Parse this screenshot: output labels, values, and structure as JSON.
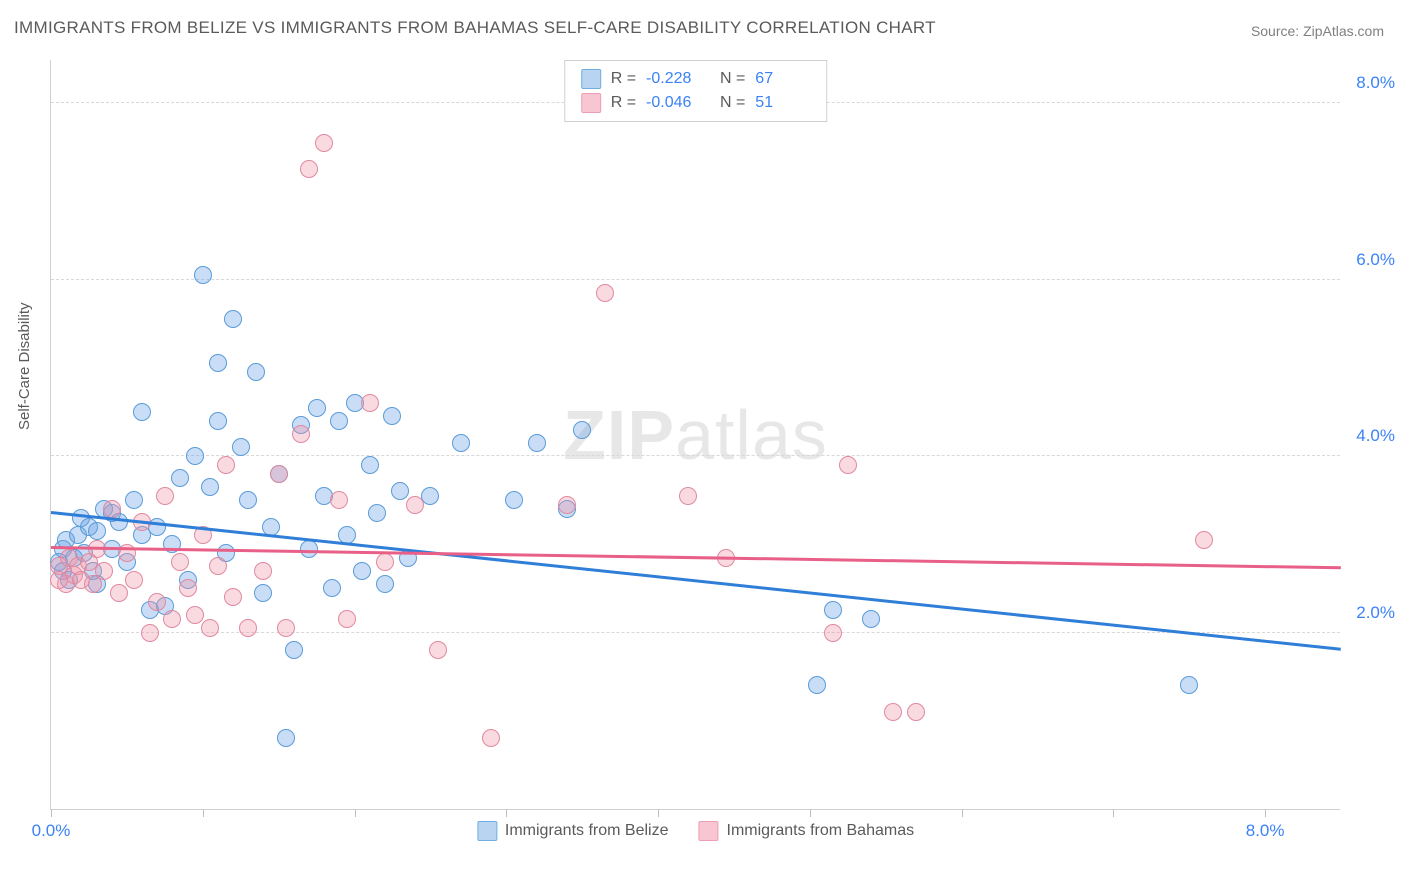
{
  "title": "IMMIGRANTS FROM BELIZE VS IMMIGRANTS FROM BAHAMAS SELF-CARE DISABILITY CORRELATION CHART",
  "source_prefix": "Source: ",
  "source_name": "ZipAtlas.com",
  "ylabel": "Self-Care Disability",
  "watermark_bold": "ZIP",
  "watermark_rest": "atlas",
  "chart": {
    "type": "scatter",
    "xlim": [
      0.0,
      8.5
    ],
    "ylim": [
      0.0,
      8.5
    ],
    "xtick_marks": [
      0.0,
      1.0,
      2.0,
      3.0,
      4.0,
      5.0,
      6.0,
      7.0,
      8.0
    ],
    "xtick_labels": [
      {
        "v": 0.0,
        "label": "0.0%"
      },
      {
        "v": 8.0,
        "label": "8.0%"
      }
    ],
    "yticks": [
      {
        "v": 2.0,
        "label": "2.0%"
      },
      {
        "v": 4.0,
        "label": "4.0%"
      },
      {
        "v": 6.0,
        "label": "6.0%"
      },
      {
        "v": 8.0,
        "label": "8.0%"
      }
    ],
    "grid_color": "#d8d8d8",
    "background_color": "#ffffff",
    "series": [
      {
        "name": "Immigrants from Belize",
        "fill": "rgba(100,160,230,0.35)",
        "stroke": "#5a9bd8",
        "line_color": "#2f7ed8",
        "swatch_fill": "#b8d4f0",
        "swatch_border": "#6faee0",
        "R": "-0.228",
        "N": "67",
        "trend": {
          "x1": 0.0,
          "y1": 3.35,
          "x2": 8.5,
          "y2": 1.8
        },
        "points": [
          [
            0.05,
            2.8
          ],
          [
            0.08,
            2.95
          ],
          [
            0.1,
            3.05
          ],
          [
            0.12,
            2.6
          ],
          [
            0.15,
            2.85
          ],
          [
            0.18,
            3.1
          ],
          [
            0.2,
            3.3
          ],
          [
            0.22,
            2.9
          ],
          [
            0.25,
            3.2
          ],
          [
            0.28,
            2.7
          ],
          [
            0.3,
            3.15
          ],
          [
            0.35,
            3.4
          ],
          [
            0.4,
            2.95
          ],
          [
            0.45,
            3.25
          ],
          [
            0.5,
            2.8
          ],
          [
            0.55,
            3.5
          ],
          [
            0.6,
            4.5
          ],
          [
            0.65,
            2.25
          ],
          [
            0.7,
            3.2
          ],
          [
            0.75,
            2.3
          ],
          [
            0.8,
            3.0
          ],
          [
            0.85,
            3.75
          ],
          [
            0.9,
            2.6
          ],
          [
            0.95,
            4.0
          ],
          [
            1.0,
            6.05
          ],
          [
            1.05,
            3.65
          ],
          [
            1.1,
            4.4
          ],
          [
            1.1,
            5.05
          ],
          [
            1.15,
            2.9
          ],
          [
            1.2,
            5.55
          ],
          [
            1.25,
            4.1
          ],
          [
            1.3,
            3.5
          ],
          [
            1.35,
            4.95
          ],
          [
            1.4,
            2.45
          ],
          [
            1.45,
            3.2
          ],
          [
            1.5,
            3.8
          ],
          [
            1.55,
            0.8
          ],
          [
            1.6,
            1.8
          ],
          [
            1.65,
            4.35
          ],
          [
            1.7,
            2.95
          ],
          [
            1.75,
            4.55
          ],
          [
            1.8,
            3.55
          ],
          [
            1.85,
            2.5
          ],
          [
            1.9,
            4.4
          ],
          [
            1.95,
            3.1
          ],
          [
            2.0,
            4.6
          ],
          [
            2.05,
            2.7
          ],
          [
            2.1,
            3.9
          ],
          [
            2.15,
            3.35
          ],
          [
            2.2,
            2.55
          ],
          [
            2.25,
            4.45
          ],
          [
            2.3,
            3.6
          ],
          [
            2.35,
            2.85
          ],
          [
            2.5,
            3.55
          ],
          [
            2.7,
            4.15
          ],
          [
            3.05,
            3.5
          ],
          [
            3.2,
            4.15
          ],
          [
            3.4,
            3.4
          ],
          [
            3.5,
            4.3
          ],
          [
            5.15,
            2.25
          ],
          [
            5.4,
            2.15
          ],
          [
            5.05,
            1.4
          ],
          [
            7.5,
            1.4
          ],
          [
            0.6,
            3.1
          ],
          [
            0.4,
            3.35
          ],
          [
            0.3,
            2.55
          ],
          [
            0.08,
            2.7
          ]
        ]
      },
      {
        "name": "Immigrants from Bahamas",
        "fill": "rgba(240,150,170,0.35)",
        "stroke": "#e089a0",
        "line_color": "#e85f88",
        "swatch_fill": "#f7c6d2",
        "swatch_border": "#ec9eb5",
        "R": "-0.046",
        "N": "51",
        "trend": {
          "x1": 0.0,
          "y1": 2.95,
          "x2": 8.5,
          "y2": 2.72
        },
        "points": [
          [
            0.05,
            2.75
          ],
          [
            0.1,
            2.55
          ],
          [
            0.12,
            2.85
          ],
          [
            0.15,
            2.65
          ],
          [
            0.18,
            2.75
          ],
          [
            0.2,
            2.6
          ],
          [
            0.25,
            2.8
          ],
          [
            0.28,
            2.55
          ],
          [
            0.3,
            2.95
          ],
          [
            0.35,
            2.7
          ],
          [
            0.4,
            3.4
          ],
          [
            0.45,
            2.45
          ],
          [
            0.5,
            2.9
          ],
          [
            0.55,
            2.6
          ],
          [
            0.6,
            3.25
          ],
          [
            0.65,
            2.0
          ],
          [
            0.7,
            2.35
          ],
          [
            0.75,
            3.55
          ],
          [
            0.8,
            2.15
          ],
          [
            0.85,
            2.8
          ],
          [
            0.9,
            2.5
          ],
          [
            0.95,
            2.2
          ],
          [
            1.0,
            3.1
          ],
          [
            1.05,
            2.05
          ],
          [
            1.1,
            2.75
          ],
          [
            1.15,
            3.9
          ],
          [
            1.2,
            2.4
          ],
          [
            1.3,
            2.05
          ],
          [
            1.4,
            2.7
          ],
          [
            1.5,
            3.8
          ],
          [
            1.55,
            2.05
          ],
          [
            1.65,
            4.25
          ],
          [
            1.7,
            7.25
          ],
          [
            1.8,
            7.55
          ],
          [
            1.9,
            3.5
          ],
          [
            1.95,
            2.15
          ],
          [
            2.1,
            4.6
          ],
          [
            2.2,
            2.8
          ],
          [
            2.4,
            3.45
          ],
          [
            2.55,
            1.8
          ],
          [
            2.9,
            0.8
          ],
          [
            3.4,
            3.45
          ],
          [
            3.65,
            5.85
          ],
          [
            4.2,
            3.55
          ],
          [
            4.45,
            2.85
          ],
          [
            5.15,
            2.0
          ],
          [
            5.25,
            3.9
          ],
          [
            5.55,
            1.1
          ],
          [
            5.7,
            1.1
          ],
          [
            7.6,
            3.05
          ],
          [
            0.05,
            2.6
          ]
        ]
      }
    ]
  }
}
